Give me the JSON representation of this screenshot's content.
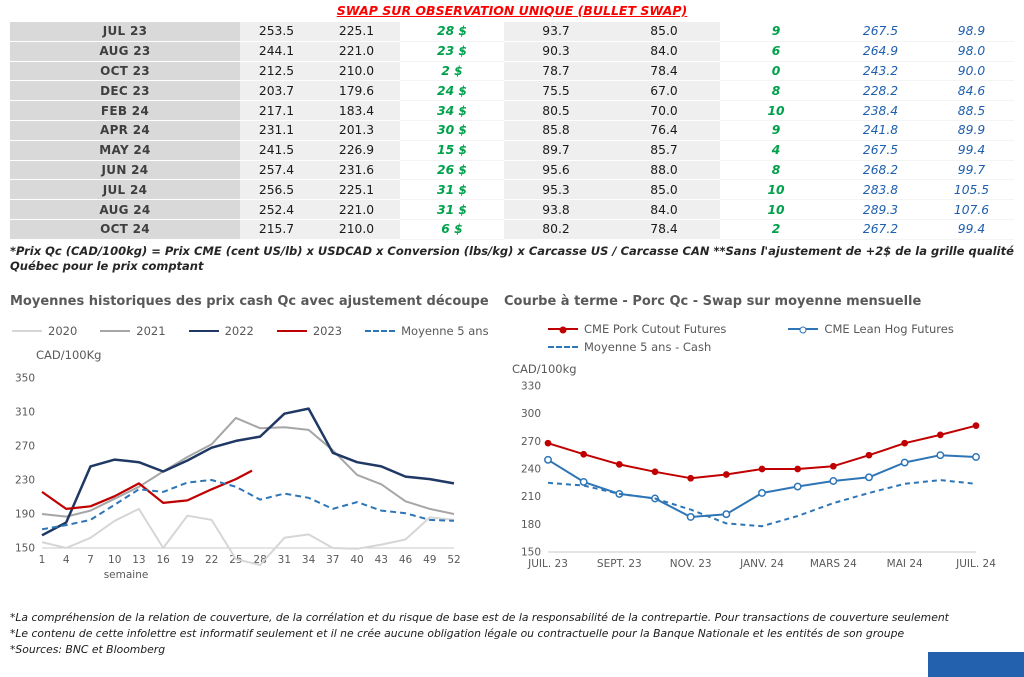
{
  "header": {
    "title": "SWAP SUR OBSERVATION UNIQUE (BULLET SWAP)"
  },
  "table": {
    "rows": [
      {
        "month": "JUL 23",
        "v1": "253.5",
        "v2": "225.1",
        "v3": "28 $",
        "v4": "93.7",
        "v5": "85.0",
        "v6": "9",
        "v7": "267.5",
        "v8": "98.9"
      },
      {
        "month": "AUG 23",
        "v1": "244.1",
        "v2": "221.0",
        "v3": "23 $",
        "v4": "90.3",
        "v5": "84.0",
        "v6": "6",
        "v7": "264.9",
        "v8": "98.0"
      },
      {
        "month": "OCT 23",
        "v1": "212.5",
        "v2": "210.0",
        "v3": "2 $",
        "v4": "78.7",
        "v5": "78.4",
        "v6": "0",
        "v7": "243.2",
        "v8": "90.0"
      },
      {
        "month": "DEC 23",
        "v1": "203.7",
        "v2": "179.6",
        "v3": "24 $",
        "v4": "75.5",
        "v5": "67.0",
        "v6": "8",
        "v7": "228.2",
        "v8": "84.6"
      },
      {
        "month": "FEB 24",
        "v1": "217.1",
        "v2": "183.4",
        "v3": "34 $",
        "v4": "80.5",
        "v5": "70.0",
        "v6": "10",
        "v7": "238.4",
        "v8": "88.5"
      },
      {
        "month": "APR 24",
        "v1": "231.1",
        "v2": "201.3",
        "v3": "30 $",
        "v4": "85.8",
        "v5": "76.4",
        "v6": "9",
        "v7": "241.8",
        "v8": "89.9"
      },
      {
        "month": "MAY 24",
        "v1": "241.5",
        "v2": "226.9",
        "v3": "15 $",
        "v4": "89.7",
        "v5": "85.7",
        "v6": "4",
        "v7": "267.5",
        "v8": "99.4"
      },
      {
        "month": "JUN 24",
        "v1": "257.4",
        "v2": "231.6",
        "v3": "26 $",
        "v4": "95.6",
        "v5": "88.0",
        "v6": "8",
        "v7": "268.2",
        "v8": "99.7"
      },
      {
        "month": "JUL 24",
        "v1": "256.5",
        "v2": "225.1",
        "v3": "31 $",
        "v4": "95.3",
        "v5": "85.0",
        "v6": "10",
        "v7": "283.8",
        "v8": "105.5"
      },
      {
        "month": "AUG 24",
        "v1": "252.4",
        "v2": "221.0",
        "v3": "31 $",
        "v4": "93.8",
        "v5": "84.0",
        "v6": "10",
        "v7": "289.3",
        "v8": "107.6"
      },
      {
        "month": "OCT 24",
        "v1": "215.7",
        "v2": "210.0",
        "v3": "6 $",
        "v4": "80.2",
        "v5": "78.4",
        "v6": "2",
        "v7": "267.2",
        "v8": "99.4"
      }
    ],
    "footnote": "*Prix Qc (CAD/100kg) = Prix CME (cent US/lb) x USDCAD x Conversion (lbs/kg) x Carcasse US / Carcasse CAN **Sans l'ajustement de +2$ de la grille qualité Québec pour le prix comptant"
  },
  "chart_data": [
    {
      "type": "line",
      "title": "Moyennes historiques des prix cash Qc avec ajustement découpe",
      "ylabel": "CAD/100Kg",
      "xlabel": "semaine",
      "ylim": [
        150,
        350
      ],
      "yticks": [
        150,
        190,
        230,
        270,
        310,
        350
      ],
      "xticks": [
        1,
        4,
        7,
        10,
        13,
        16,
        19,
        22,
        25,
        28,
        31,
        34,
        37,
        40,
        43,
        46,
        49,
        52
      ],
      "legend_position": "top",
      "grid": false,
      "series": [
        {
          "name": "2020",
          "color": "#d6d6d6",
          "x": [
            1,
            4,
            7,
            10,
            13,
            16,
            19,
            22,
            25,
            28,
            31,
            34,
            37,
            40,
            43,
            46,
            49,
            52
          ],
          "values": [
            157,
            150,
            162,
            182,
            196,
            150,
            188,
            183,
            137,
            130,
            162,
            166,
            150,
            149,
            154,
            160,
            186,
            183
          ]
        },
        {
          "name": "2021",
          "color": "#a6a6a6",
          "x": [
            1,
            4,
            7,
            10,
            13,
            16,
            19,
            22,
            25,
            28,
            31,
            34,
            37,
            40,
            43,
            46,
            49,
            52
          ],
          "values": [
            190,
            187,
            194,
            208,
            222,
            240,
            257,
            272,
            303,
            291,
            292,
            289,
            265,
            236,
            225,
            205,
            196,
            190
          ]
        },
        {
          "name": "2022",
          "color": "#1f3864",
          "width": 2.5,
          "x": [
            1,
            4,
            7,
            10,
            13,
            16,
            19,
            22,
            25,
            28,
            31,
            34,
            37,
            40,
            43,
            46,
            49,
            52
          ],
          "values": [
            165,
            180,
            246,
            254,
            251,
            240,
            253,
            268,
            276,
            281,
            308,
            314,
            262,
            251,
            246,
            234,
            231,
            226
          ]
        },
        {
          "name": "2023",
          "color": "#c00000",
          "width": 2.2,
          "x": [
            1,
            4,
            7,
            10,
            13,
            16,
            19,
            22,
            25,
            27
          ],
          "values": [
            216,
            196,
            199,
            211,
            226,
            203,
            206,
            219,
            231,
            241
          ]
        },
        {
          "name": "Moyenne 5 ans",
          "color": "#2e75b6",
          "dash": "6 4",
          "x": [
            1,
            4,
            7,
            10,
            13,
            16,
            19,
            22,
            25,
            28,
            31,
            34,
            37,
            40,
            43,
            46,
            49,
            52
          ],
          "values": [
            172,
            177,
            183,
            201,
            219,
            216,
            227,
            230,
            222,
            207,
            214,
            209,
            196,
            204,
            194,
            191,
            183,
            182
          ]
        }
      ]
    },
    {
      "type": "line",
      "title": "Courbe à terme - Porc Qc - Swap sur moyenne mensuelle",
      "ylabel": "CAD/100kg",
      "ylim": [
        150,
        330
      ],
      "yticks": [
        150,
        180,
        210,
        240,
        270,
        300,
        330
      ],
      "xticks": [
        {
          "x": 0,
          "label": "JUIL. 23"
        },
        {
          "x": 2,
          "label": "SEPT. 23"
        },
        {
          "x": 4,
          "label": "NOV. 23"
        },
        {
          "x": 6,
          "label": "JANV. 24"
        },
        {
          "x": 8,
          "label": "MARS 24"
        },
        {
          "x": 10,
          "label": "MAI 24"
        },
        {
          "x": 12,
          "label": "JUIL. 24"
        }
      ],
      "legend_position": "top",
      "grid": false,
      "series": [
        {
          "name": "CME Pork Cutout Futures",
          "color": "#c00000",
          "marker": "filled",
          "x": [
            0,
            1,
            2,
            3,
            4,
            5,
            6,
            7,
            8,
            9,
            10,
            11,
            12
          ],
          "values": [
            268,
            256,
            245,
            237,
            230,
            234,
            240,
            240,
            243,
            255,
            268,
            277,
            287
          ]
        },
        {
          "name": "CME Lean Hog Futures",
          "color": "#2e75b6",
          "marker": "open",
          "x": [
            0,
            1,
            2,
            3,
            4,
            5,
            6,
            7,
            8,
            9,
            10,
            11,
            12
          ],
          "values": [
            250,
            226,
            213,
            208,
            188,
            191,
            214,
            221,
            227,
            231,
            247,
            255,
            253
          ]
        },
        {
          "name": "Moyenne 5 ans - Cash",
          "color": "#2e75b6",
          "dash": "5 4",
          "x": [
            0,
            1,
            2,
            3,
            4,
            5,
            6,
            7,
            8,
            9,
            10,
            11,
            12
          ],
          "values": [
            225,
            222,
            213,
            208,
            196,
            181,
            178,
            189,
            203,
            214,
            224,
            228,
            224
          ]
        }
      ]
    }
  ],
  "footer": {
    "notes": [
      "*La compréhension de la relation de couverture, de la corrélation et du risque de base est de la responsabilité de la contrepartie. Pour transactions de couverture seulement",
      "*Le contenu de cette infolettre est informatif seulement et il ne crée aucune obligation légale ou contractuelle pour la Banque Nationale et les entités de son groupe",
      "*Sources: BNC et Bloomberg"
    ]
  },
  "colors": {
    "title_red": "#fe0000",
    "green": "#00a14b",
    "blue": "#1f5fad",
    "logo_blue": "#2361ae"
  }
}
